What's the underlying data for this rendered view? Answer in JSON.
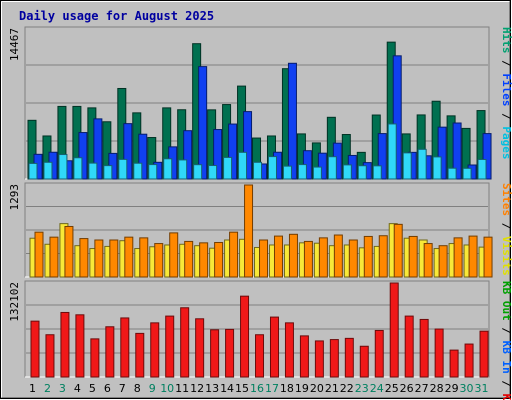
{
  "chart_data": {
    "type": "bar",
    "title": "Daily usage for August 2025",
    "days": [
      "1",
      "2",
      "3",
      "4",
      "5",
      "6",
      "7",
      "8",
      "9",
      "10",
      "11",
      "12",
      "13",
      "14",
      "15",
      "16",
      "17",
      "18",
      "19",
      "20",
      "21",
      "22",
      "23",
      "24",
      "25",
      "26",
      "27",
      "28",
      "29",
      "30",
      "31"
    ],
    "weekend_days": [
      "2",
      "3",
      "9",
      "10",
      "16",
      "17",
      "23",
      "24",
      "30",
      "31"
    ],
    "panels": [
      {
        "id": "pages",
        "ymax_label": "14467",
        "ymax": 14467,
        "legend": [
          {
            "label": "Pages",
            "color": "#00c0e0"
          },
          {
            "label": " / ",
            "color": "#000000"
          },
          {
            "label": "Files",
            "color": "#0040ff"
          },
          {
            "label": " / ",
            "color": "#000000"
          },
          {
            "label": "Hits",
            "color": "#00a070"
          }
        ],
        "series": [
          {
            "name": "Hits",
            "color": "#007050",
            "values": [
              5660,
              4150,
              7000,
              7000,
              6860,
              5520,
              8730,
              6380,
              4000,
              6860,
              6680,
              13050,
              6670,
              7180,
              8960,
              3950,
              4150,
              10640,
              4350,
              3480,
              5950,
              4290,
              2570,
              6170,
              13200,
              4350,
              6180,
              7500,
              6090,
              4880,
              6600
            ]
          },
          {
            "name": "Files",
            "color": "#1040f0",
            "values": [
              2380,
              2580,
              1760,
              4480,
              5800,
              2470,
              5340,
              4320,
              1610,
              3100,
              4660,
              10840,
              4770,
              5300,
              6500,
              1450,
              2580,
              11160,
              2730,
              2490,
              3460,
              2270,
              1580,
              4380,
              11880,
              2570,
              2240,
              5000,
              5400,
              1350,
              4380
            ]
          },
          {
            "name": "Pages",
            "color": "#30d8f8",
            "values": [
              1500,
              1610,
              2360,
              2050,
              1530,
              1290,
              1890,
              1520,
              1390,
              1950,
              1840,
              1380,
              1300,
              2080,
              2570,
              1610,
              2160,
              1240,
              1390,
              1150,
              2150,
              1360,
              1280,
              1270,
              5310,
              2520,
              2860,
              2130,
              1040,
              1030,
              1880
            ]
          }
        ]
      },
      {
        "id": "visits",
        "ymax_label": "1293",
        "ymax": 1293,
        "legend": [
          {
            "label": "Visits",
            "color": "#e0e000"
          },
          {
            "label": " / ",
            "color": "#000000"
          },
          {
            "label": "Sites",
            "color": "#ff8000"
          }
        ],
        "series": [
          {
            "name": "Visits",
            "color": "#f8e838",
            "values": [
              545,
              460,
              750,
              440,
              400,
              430,
              510,
              400,
              425,
              450,
              460,
              440,
              405,
              520,
              530,
              415,
              450,
              450,
              480,
              475,
              440,
              450,
              410,
              430,
              750,
              545,
              520,
              400,
              470,
              450,
              420
            ]
          },
          {
            "name": "Sites",
            "color": "#ff8800",
            "values": [
              630,
              560,
              710,
              540,
              520,
              520,
              560,
              550,
              470,
              620,
              500,
              480,
              485,
              630,
              1293,
              520,
              575,
              600,
              500,
              550,
              590,
              520,
              570,
              580,
              740,
              570,
              470,
              440,
              550,
              575,
              560
            ]
          }
        ]
      },
      {
        "id": "kbytes",
        "ymax_label": "132102",
        "ymax": 132102,
        "legend": [
          {
            "label": "KB F",
            "color": "#e00000"
          },
          {
            "label": " / ",
            "color": "#000000"
          },
          {
            "label": "KB In",
            "color": "#0060ff"
          },
          {
            "label": " / ",
            "color": "#000000"
          },
          {
            "label": "KB Out",
            "color": "#00a000"
          }
        ],
        "series": [
          {
            "name": "KB F",
            "color": "#f01818",
            "values": [
              78500,
              59400,
              90700,
              87400,
              53600,
              70600,
              83000,
              61300,
              76100,
              85600,
              97300,
              81800,
              66300,
              66900,
              113600,
              59400,
              84200,
              76100,
              57800,
              50700,
              52600,
              54300,
              43200,
              65400,
              132102,
              85600,
              80900,
              67400,
              37800,
              46300,
              64400
            ]
          }
        ]
      }
    ]
  }
}
